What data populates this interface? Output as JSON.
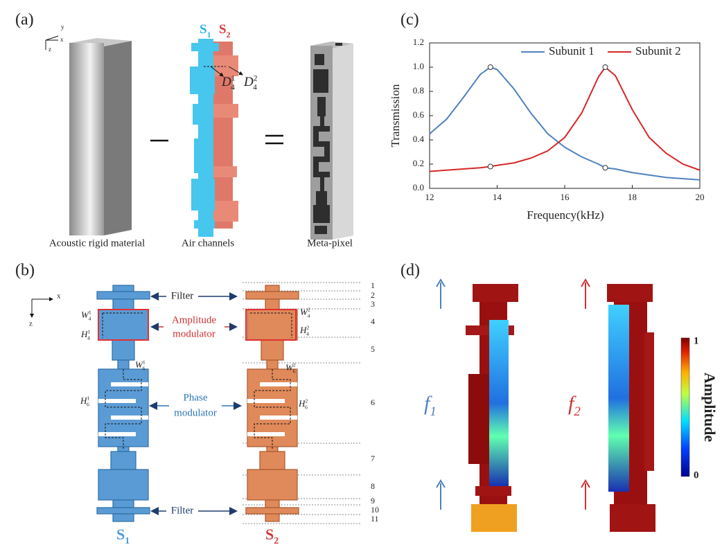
{
  "panel_a": {
    "label": "(a)",
    "axes": [
      "y",
      "x",
      "z"
    ],
    "s1": {
      "letter": "S",
      "sub": "1"
    },
    "s2": {
      "letter": "S",
      "sub": "2"
    },
    "d1": {
      "letter": "D",
      "sub": "4",
      "sup": "1"
    },
    "d2": {
      "letter": "D",
      "sub": "4",
      "sup": "2"
    },
    "captions": [
      "Acoustic rigid material",
      "Air channels",
      "Meta-pixel"
    ]
  },
  "panel_b": {
    "label": "(b)",
    "axes": [
      "x",
      "z"
    ],
    "filter_top": "Filter",
    "amplitude": [
      "Amplitude",
      "modulator"
    ],
    "phase": [
      "Phase",
      "modulator"
    ],
    "filter_bottom": "Filter",
    "dims": [
      {
        "letter": "W",
        "sub": "4",
        "sup": "1"
      },
      {
        "letter": "H",
        "sub": "4",
        "sup": "1"
      },
      {
        "letter": "W",
        "sub": "6",
        "sup": "1"
      },
      {
        "letter": "H",
        "sub": "6",
        "sup": "1"
      },
      {
        "letter": "W",
        "sub": "4",
        "sup": "2"
      },
      {
        "letter": "H",
        "sub": "4",
        "sup": "2"
      },
      {
        "letter": "W",
        "sub": "6",
        "sup": "2"
      },
      {
        "letter": "H",
        "sub": "6",
        "sup": "2"
      }
    ],
    "levels": [
      "1",
      "2",
      "3",
      "4",
      "5",
      "6",
      "7",
      "8",
      "9",
      "10",
      "11"
    ],
    "s1": {
      "letter": "S",
      "sub": "1"
    },
    "s2": {
      "letter": "S",
      "sub": "2"
    }
  },
  "chart_data": {
    "type": "line",
    "panel_label": "(c)",
    "x_label": "Frequency(kHz)",
    "y_label": "Transmission",
    "x": [
      12,
      12.5,
      13,
      13.5,
      13.8,
      14,
      14.5,
      15,
      15.5,
      16,
      16.5,
      17,
      17.2,
      17.5,
      18,
      18.5,
      19,
      19.5,
      20
    ],
    "series": [
      {
        "name": "Subunit 1",
        "color": "#4f81bd",
        "values": [
          0.45,
          0.57,
          0.75,
          0.94,
          1.0,
          0.98,
          0.82,
          0.62,
          0.45,
          0.34,
          0.26,
          0.2,
          0.17,
          0.16,
          0.13,
          0.11,
          0.09,
          0.08,
          0.07
        ],
        "markers": [
          {
            "x": 13.8,
            "y": 1.0
          },
          {
            "x": 17.2,
            "y": 0.17
          }
        ]
      },
      {
        "name": "Subunit 2",
        "color": "#d62728",
        "values": [
          0.14,
          0.15,
          0.16,
          0.17,
          0.18,
          0.19,
          0.21,
          0.25,
          0.31,
          0.42,
          0.62,
          0.92,
          1.0,
          0.93,
          0.65,
          0.42,
          0.29,
          0.2,
          0.15
        ],
        "markers": [
          {
            "x": 13.8,
            "y": 0.18
          },
          {
            "x": 17.2,
            "y": 1.0
          }
        ]
      }
    ],
    "xlim": [
      12,
      20
    ],
    "xticks": [
      12,
      14,
      16,
      18,
      20
    ],
    "ylim": [
      0,
      1.2
    ],
    "yticks": [
      {
        "value": 0,
        "label": "0.0"
      },
      0.2,
      0.4,
      0.6,
      0.8,
      {
        "value": 1,
        "label": "1.0"
      },
      1.2
    ],
    "legend": "upper right",
    "grid": false
  },
  "panel_d": {
    "label": "(d)",
    "f1": {
      "letter": "f",
      "sub": "1"
    },
    "f2": {
      "letter": "f",
      "sub": "2"
    },
    "colorbar": {
      "max": "1",
      "min": "0",
      "title": "Amplitude"
    }
  }
}
